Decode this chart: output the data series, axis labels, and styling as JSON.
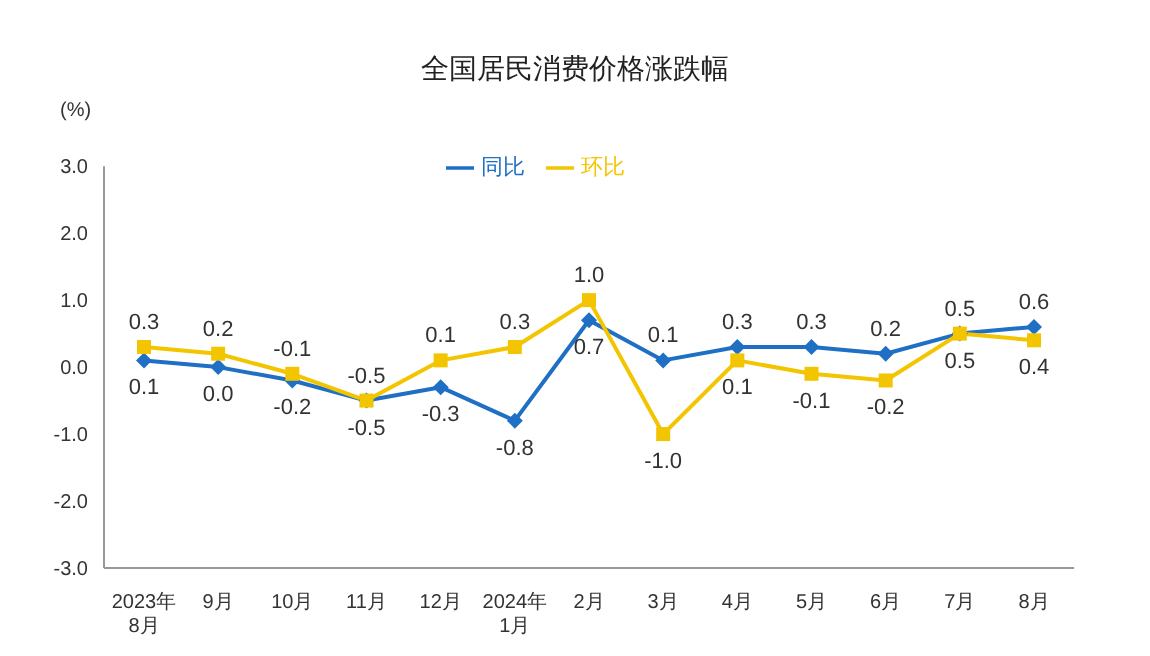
{
  "chart_data": {
    "type": "line",
    "title": "全国居民消费价格涨跌幅",
    "ylabel": "(%)",
    "categories": [
      "2023年\n8月",
      "9月",
      "10月",
      "11月",
      "12月",
      "2024年\n1月",
      "2月",
      "3月",
      "4月",
      "5月",
      "6月",
      "7月",
      "8月"
    ],
    "series": [
      {
        "name": "同比",
        "color": "#1f6fc5",
        "marker": "diamond",
        "values": [
          0.1,
          0.0,
          -0.2,
          -0.5,
          -0.3,
          -0.8,
          0.7,
          0.1,
          0.3,
          0.3,
          0.2,
          0.5,
          0.6
        ],
        "value_labels": [
          "0.1",
          "0.0",
          "-0.2",
          "-0.5",
          "-0.3",
          "-0.8",
          "0.7",
          "0.1",
          "0.3",
          "0.3",
          "0.2",
          "0.5",
          "0.6"
        ]
      },
      {
        "name": "环比",
        "color": "#f2c500",
        "marker": "square",
        "values": [
          0.3,
          0.2,
          -0.1,
          -0.5,
          0.1,
          0.3,
          1.0,
          -1.0,
          0.1,
          -0.1,
          -0.2,
          0.5,
          0.4
        ],
        "value_labels": [
          "0.3",
          "0.2",
          "-0.1",
          "-0.5",
          "0.1",
          "0.3",
          "1.0",
          "-1.0",
          "0.1",
          "-0.1",
          "-0.2",
          "0.5",
          "0.4"
        ]
      }
    ],
    "ylim": [
      -3,
      3
    ],
    "yticks": [
      {
        "value": -3,
        "label": "-3.0"
      },
      {
        "value": -2,
        "label": "-2.0"
      },
      {
        "value": -1,
        "label": "-1.0"
      },
      {
        "value": 0,
        "label": "0.0"
      },
      {
        "value": 1,
        "label": "1.0"
      },
      {
        "value": 2,
        "label": "2.0"
      },
      {
        "value": 3,
        "label": "3.0"
      }
    ],
    "grid": false,
    "legend": "top",
    "line_style": "solid"
  }
}
